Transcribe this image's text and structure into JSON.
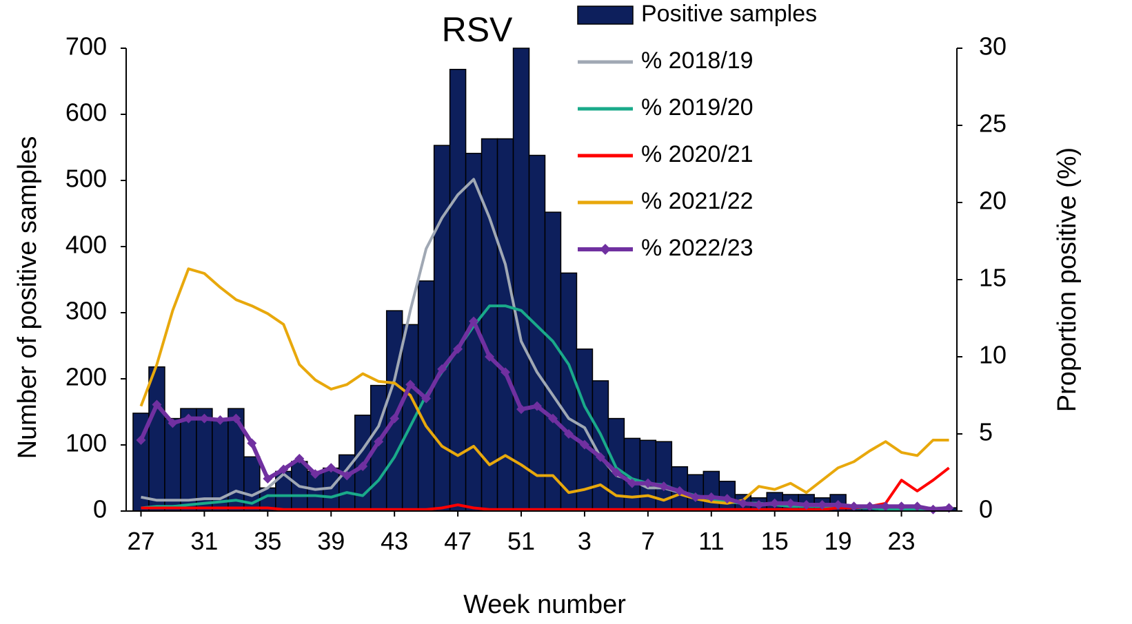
{
  "chart_data": {
    "type": "bar",
    "title": "RSV",
    "x_label": "Week number",
    "y_label": "Number of positive samples",
    "y2_label": "Proportion positive (%)",
    "categories": [
      "27",
      null,
      null,
      null,
      "31",
      null,
      null,
      null,
      "35",
      null,
      null,
      null,
      "39",
      null,
      null,
      null,
      "43",
      null,
      null,
      null,
      "47",
      null,
      null,
      null,
      "51",
      null,
      null,
      null,
      "3",
      null,
      null,
      null,
      "7",
      null,
      null,
      null,
      "11",
      null,
      null,
      null,
      "15",
      null,
      null,
      null,
      "19",
      null,
      null,
      null,
      "23",
      null,
      null,
      null
    ],
    "ylim": [
      0,
      700
    ],
    "yticks": [
      0,
      100,
      200,
      300,
      400,
      500,
      600,
      700
    ],
    "y2lim": [
      0,
      30
    ],
    "y2ticks": [
      0,
      5,
      10,
      15,
      20,
      25,
      30
    ],
    "series": [
      {
        "name": "Positive samples",
        "type": "bar",
        "color": "#0d1f5c",
        "values": [
          148,
          218,
          140,
          155,
          155,
          140,
          155,
          82,
          35,
          60,
          75,
          60,
          65,
          85,
          145,
          190,
          303,
          282,
          348,
          553,
          668,
          541,
          563,
          563,
          700,
          538,
          452,
          360,
          245,
          197,
          140,
          110,
          107,
          105,
          67,
          55,
          60,
          45,
          25,
          20,
          28,
          25,
          25,
          20,
          25,
          5,
          5,
          5,
          5,
          5,
          5,
          5
        ]
      },
      {
        "name": "% 2018/19",
        "type": "line",
        "axis": "y2",
        "color": "#a0a8b4",
        "values": [
          0.9,
          0.7,
          0.7,
          0.7,
          0.8,
          0.8,
          1.3,
          1.0,
          1.5,
          2.4,
          1.6,
          1.4,
          1.5,
          2.7,
          4.0,
          5.5,
          8.5,
          13,
          17,
          19,
          20.5,
          21.5,
          19,
          16,
          11,
          9,
          7.5,
          6,
          5.4,
          3.5,
          2.3,
          2,
          1.5,
          1.5,
          1.2,
          1.0,
          0.8,
          0.6,
          0.5,
          0.5,
          0.4,
          0.4,
          0.4,
          0.3,
          0.3,
          0.3,
          0.3,
          0.3,
          0.3,
          0.2,
          0.2,
          0.2
        ]
      },
      {
        "name": "% 2019/20",
        "type": "line",
        "axis": "y2",
        "color": "#1aaa8a",
        "values": [
          0.2,
          0.3,
          0.3,
          0.4,
          0.5,
          0.6,
          0.7,
          0.5,
          1.0,
          1.0,
          1.0,
          1.0,
          0.9,
          1.2,
          1.0,
          2.0,
          3.5,
          5.5,
          7.5,
          9,
          10.5,
          12,
          13.3,
          13.3,
          13,
          12,
          11,
          9.5,
          6.8,
          5,
          2.8,
          2.1,
          1.8,
          1.7,
          1.3,
          1.0,
          0.8,
          0.6,
          0.5,
          0.5,
          0.4,
          0.3,
          0.3,
          0.3,
          0.2,
          0.2,
          0.2,
          0.1,
          0.1,
          0.1,
          0.1,
          0.1
        ]
      },
      {
        "name": "% 2020/21",
        "type": "line",
        "axis": "y2",
        "color": "#ff0000",
        "values": [
          0.2,
          0.2,
          0.2,
          0.2,
          0.2,
          0.2,
          0.2,
          0.2,
          0.2,
          0.1,
          0.1,
          0.1,
          0.1,
          0.1,
          0.1,
          0.1,
          0.1,
          0.1,
          0.1,
          0.2,
          0.4,
          0.2,
          0.1,
          0.1,
          0.1,
          0.1,
          0.1,
          0.1,
          0.1,
          0.1,
          0.1,
          0.1,
          0.1,
          0.1,
          0.1,
          0.1,
          0.1,
          0.1,
          0.1,
          0.1,
          0.1,
          0.1,
          0.1,
          0.1,
          0.2,
          0.2,
          0.3,
          0.5,
          2.0,
          1.3,
          2.0,
          2.8
        ]
      },
      {
        "name": "% 2021/22",
        "type": "line",
        "axis": "y2",
        "color": "#e8a80c",
        "values": [
          6.8,
          9.5,
          13,
          15.7,
          15.4,
          14.5,
          13.7,
          13.3,
          12.8,
          12.1,
          9.5,
          8.5,
          7.9,
          8.2,
          8.9,
          8.4,
          8.3,
          7.5,
          5.5,
          4.2,
          3.6,
          4.2,
          3.0,
          3.6,
          3.0,
          2.3,
          2.3,
          1.2,
          1.4,
          1.7,
          1.0,
          0.9,
          1.0,
          0.7,
          1.1,
          0.8,
          0.6,
          0.5,
          0.7,
          1.6,
          1.4,
          1.8,
          1.2,
          2.0,
          2.8,
          3.2,
          3.9,
          4.5,
          3.8,
          3.6,
          4.6,
          4.6
        ]
      },
      {
        "name": "% 2022/23",
        "type": "line",
        "axis": "y2",
        "color": "#7030a0",
        "markers": true,
        "values": [
          4.6,
          6.9,
          5.7,
          6.0,
          6.0,
          5.9,
          6.0,
          4.4,
          2.1,
          2.7,
          3.4,
          2.4,
          2.8,
          2.3,
          2.9,
          4.5,
          6.0,
          8.2,
          7.3,
          9.2,
          10.5,
          12.3,
          10.0,
          9.0,
          6.6,
          6.8,
          6.0,
          5.0,
          4.3,
          3.5,
          2.5,
          1.8,
          1.8,
          1.6,
          1.3,
          0.9,
          0.9,
          0.8,
          0.5,
          0.4,
          0.5,
          0.5,
          0.4,
          0.4,
          0.4,
          0.3,
          0.3,
          0.3,
          0.3,
          0.3,
          0.1,
          0.2
        ]
      }
    ]
  }
}
